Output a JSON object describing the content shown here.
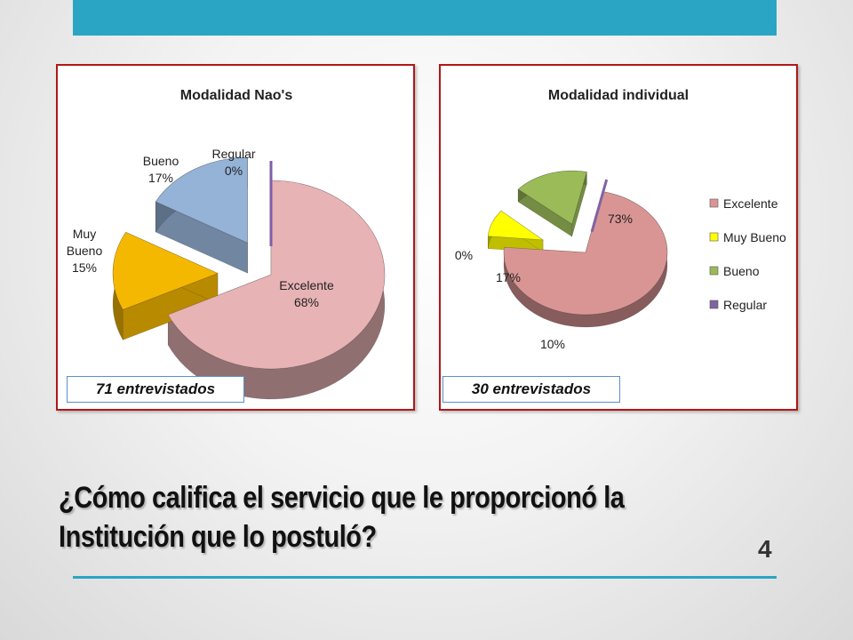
{
  "colors": {
    "accent": "#2aa5c4",
    "panel_border": "#b01818"
  },
  "chart_data": [
    {
      "type": "pie",
      "title": "Modalidad Nao's",
      "categories": [
        "Excelente",
        "Muy Bueno",
        "Bueno",
        "Regular"
      ],
      "values": [
        68,
        15,
        17,
        0
      ],
      "value_labels": [
        "68%",
        "15%",
        "17%",
        "0%"
      ],
      "labels": [
        "Excelente",
        "Muy Bueno",
        "Bueno",
        "Regular"
      ],
      "colors": [
        "#e8b3b5",
        "#f5b800",
        "#95b3d7",
        "#7f5ea8"
      ],
      "note": "71 entrevistados"
    },
    {
      "type": "pie",
      "title": "Modalidad individual",
      "categories": [
        "Excelente",
        "Muy Bueno",
        "Bueno",
        "Regular"
      ],
      "values": [
        73,
        10,
        17,
        0
      ],
      "value_labels": [
        "73%",
        "10%",
        "17%",
        "0%"
      ],
      "legend": [
        "Excelente",
        "Muy Bueno",
        "Bueno",
        "Regular"
      ],
      "legend_position": "right",
      "colors": [
        "#d99594",
        "#ffff00",
        "#9bbb59",
        "#8064a2"
      ],
      "note": "30 entrevistados"
    }
  ],
  "slide": {
    "title": "¿Cómo califica el servicio que le proporcionó la Institución que lo postuló?",
    "page_number": "4"
  }
}
